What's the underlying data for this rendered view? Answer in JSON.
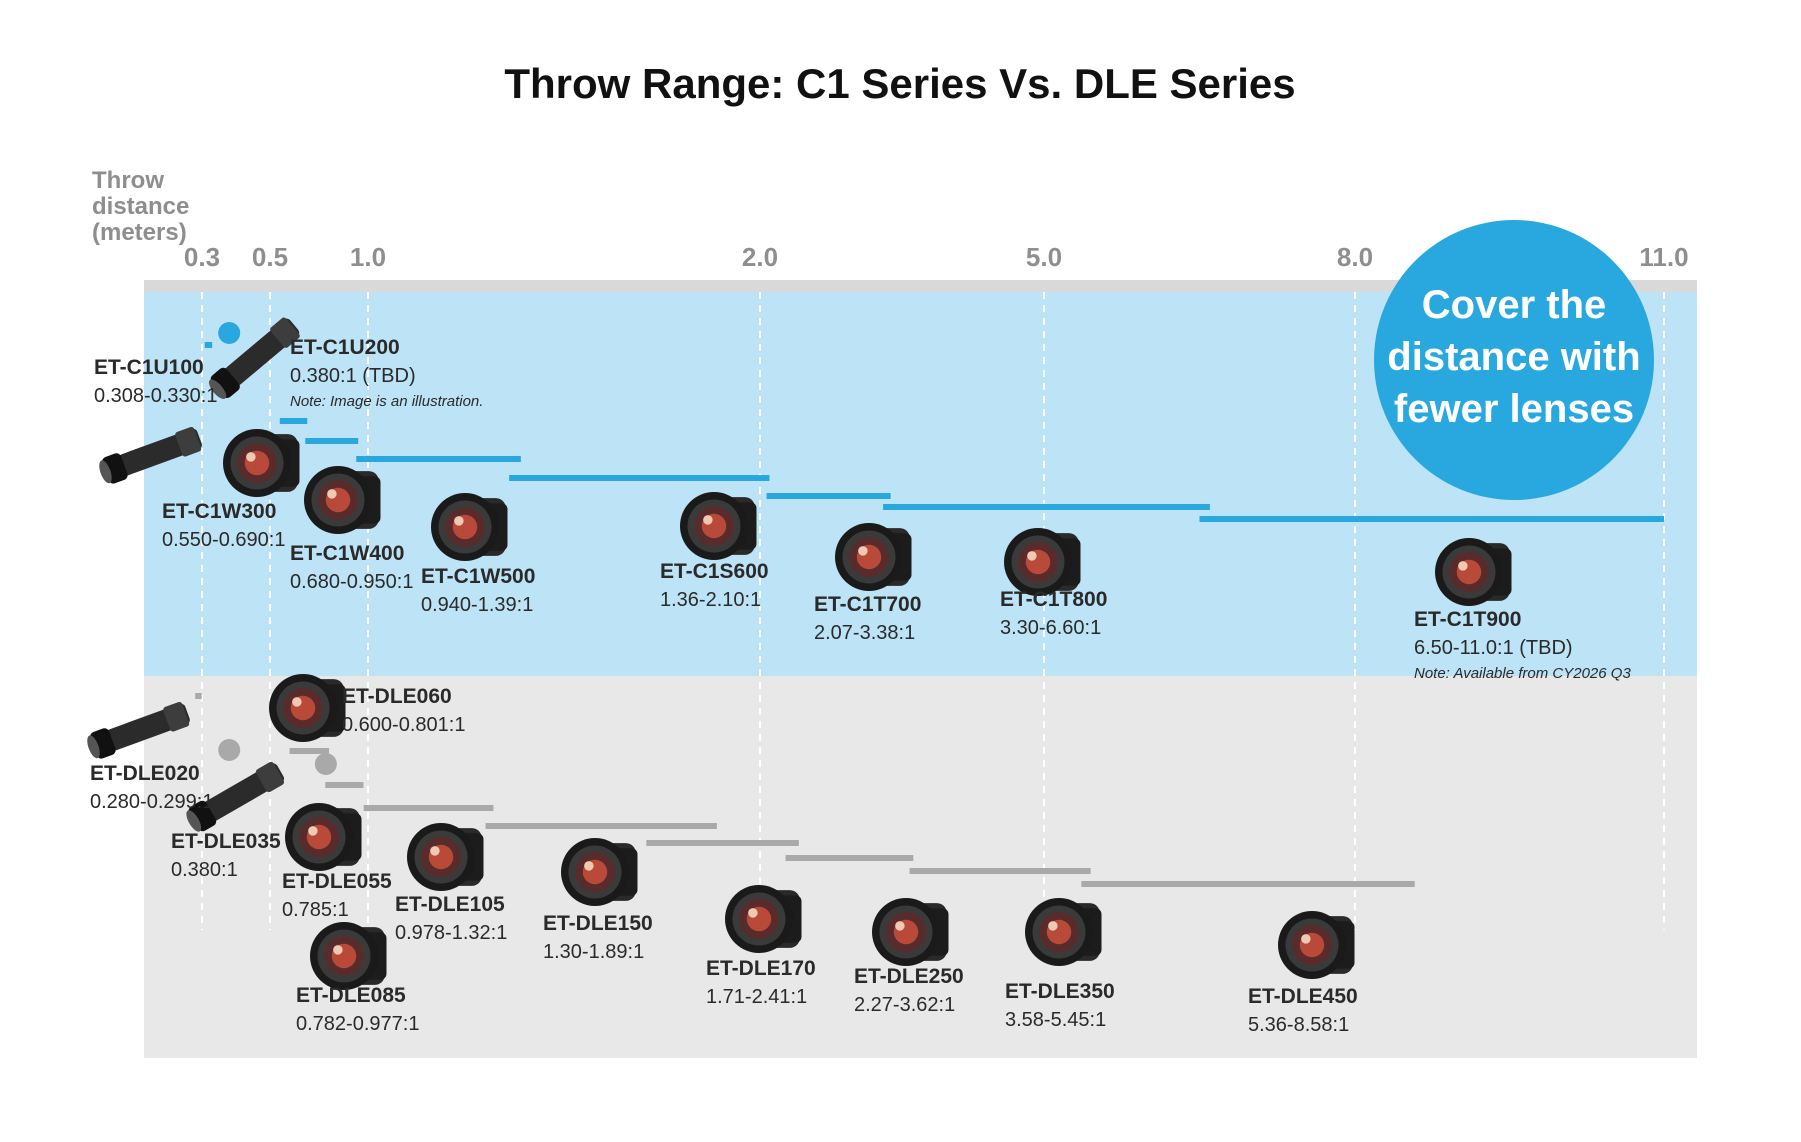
{
  "chart_data": {
    "type": "range-bar",
    "title": "Throw Range: C1 Series Vs. DLE Series",
    "axis_label_lines": [
      "Throw",
      "distance",
      "(meters)"
    ],
    "x_ticks": [
      {
        "value": 0.3,
        "label": "0.3"
      },
      {
        "value": 0.5,
        "label": "0.5"
      },
      {
        "value": 1.0,
        "label": "1.0"
      },
      {
        "value": 2.0,
        "label": "2.0"
      },
      {
        "value": 5.0,
        "label": "5.0"
      },
      {
        "value": 8.0,
        "label": "8.0"
      },
      {
        "value": 11.0,
        "label": "11.0"
      }
    ],
    "grid": "dashed vertical lines at ticks",
    "callout_lines": [
      "Cover the",
      "distance with",
      "fewer lenses"
    ],
    "series": [
      {
        "name": "C1 Series",
        "color": "#29a8df",
        "background": "#bde3f7",
        "lenses": [
          {
            "name": "ET-C1U100",
            "ratio": "0.308-0.330:1",
            "range": [
              0.308,
              0.33
            ]
          },
          {
            "name": "ET-C1U200",
            "ratio": "0.380:1 (TBD)",
            "range": [
              0.38,
              0.38
            ],
            "fixed": true,
            "note": "Note: Image is an illustration."
          },
          {
            "name": "ET-C1W300",
            "ratio": "0.550-0.690:1",
            "range": [
              0.55,
              0.69
            ]
          },
          {
            "name": "ET-C1W400",
            "ratio": "0.680-0.950:1",
            "range": [
              0.68,
              0.95
            ]
          },
          {
            "name": "ET-C1W500",
            "ratio": "0.940-1.39:1",
            "range": [
              0.94,
              1.39
            ]
          },
          {
            "name": "ET-C1S600",
            "ratio": "1.36-2.10:1",
            "range": [
              1.36,
              2.1
            ]
          },
          {
            "name": "ET-C1T700",
            "ratio": "2.07-3.38:1",
            "range": [
              2.07,
              3.38
            ]
          },
          {
            "name": "ET-C1T800",
            "ratio": "3.30-6.60:1",
            "range": [
              3.3,
              6.6
            ]
          },
          {
            "name": "ET-C1T900",
            "ratio": "6.50-11.0:1 (TBD)",
            "range": [
              6.5,
              11.0
            ],
            "note": "Note: Available from CY2026 Q3"
          }
        ]
      },
      {
        "name": "DLE Series",
        "color": "#a9a9a9",
        "background": "#e8e8e8",
        "lenses": [
          {
            "name": "ET-DLE020",
            "ratio": "0.280-0.299:1",
            "range": [
              0.28,
              0.299
            ]
          },
          {
            "name": "ET-DLE035",
            "ratio": "0.380:1",
            "range": [
              0.38,
              0.38
            ],
            "fixed": true
          },
          {
            "name": "ET-DLE060",
            "ratio": "0.600-0.801:1",
            "range": [
              0.6,
              0.801
            ]
          },
          {
            "name": "ET-DLE055",
            "ratio": "0.785:1",
            "range": [
              0.785,
              0.785
            ],
            "fixed": true
          },
          {
            "name": "ET-DLE085",
            "ratio": "0.782-0.977:1",
            "range": [
              0.782,
              0.977
            ]
          },
          {
            "name": "ET-DLE105",
            "ratio": "0.978-1.32:1",
            "range": [
              0.978,
              1.32
            ]
          },
          {
            "name": "ET-DLE150",
            "ratio": "1.30-1.89:1",
            "range": [
              1.3,
              1.89
            ]
          },
          {
            "name": "ET-DLE170",
            "ratio": "1.71-2.41:1",
            "range": [
              1.71,
              2.41
            ]
          },
          {
            "name": "ET-DLE250",
            "ratio": "2.27-3.62:1",
            "range": [
              2.27,
              3.62
            ]
          },
          {
            "name": "ET-DLE350",
            "ratio": "3.58-5.45:1",
            "range": [
              3.58,
              5.45
            ]
          },
          {
            "name": "ET-DLE450",
            "ratio": "5.36-8.58:1",
            "range": [
              5.36,
              8.58
            ]
          }
        ]
      }
    ]
  }
}
